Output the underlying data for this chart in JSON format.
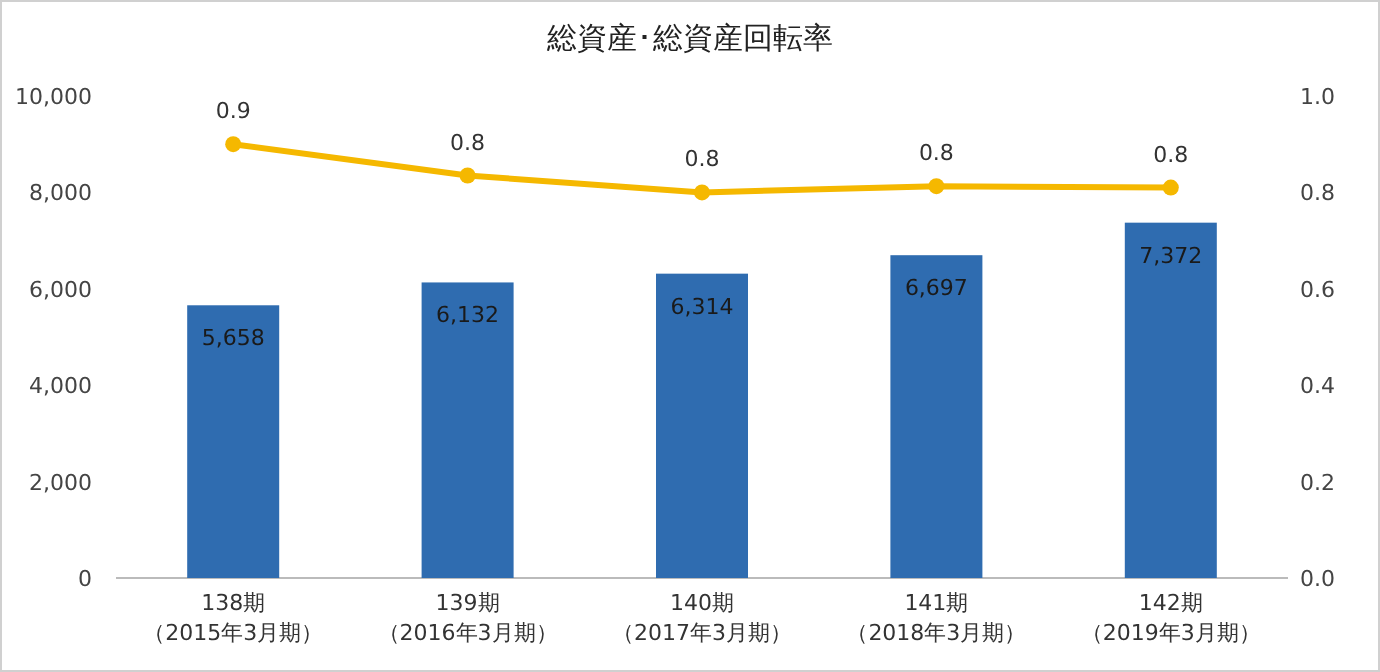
{
  "chart_data": {
    "type": "bar",
    "title": "総資産･総資産回転率",
    "categories": [
      "138期（2015年3月期）",
      "139期（2016年3月期）",
      "140期（2017年3月期）",
      "141期（2018年3月期）",
      "142期（2019年3月期）"
    ],
    "series": [
      {
        "color": "#2f6cb0",
        "values": [
          5658,
          6132,
          6314,
          6697,
          7372
        ],
        "value_labels": [
          "5,658",
          "6,132",
          "6,314",
          "6,697",
          "7,372"
        ]
      },
      {
        "type": "line",
        "axis": "y2",
        "color": "#f5b800",
        "marker": "circle",
        "values": [
          0.9,
          0.835,
          0.8,
          0.813,
          0.81
        ],
        "value_labels": [
          "0.9",
          "0.8",
          "0.8",
          "0.8",
          "0.8"
        ]
      }
    ],
    "ylim": [
      0,
      10000
    ],
    "yticks": [
      {
        "value": 0,
        "label": "0"
      },
      {
        "value": 2000,
        "label": "2,000"
      },
      {
        "value": 4000,
        "label": "4,000"
      },
      {
        "value": 6000,
        "label": "6,000"
      },
      {
        "value": 8000,
        "label": "8,000"
      },
      {
        "value": 10000,
        "label": "10,000"
      }
    ],
    "y2lim": [
      0,
      1
    ],
    "y2ticks": [
      {
        "value": 0,
        "label": "0.0"
      },
      {
        "value": 0.2,
        "label": "0.2"
      },
      {
        "value": 0.4,
        "label": "0.4"
      },
      {
        "value": 0.6,
        "label": "0.6"
      },
      {
        "value": 0.8,
        "label": "0.8"
      },
      {
        "value": 1,
        "label": "1.0"
      }
    ],
    "grid": false
  }
}
